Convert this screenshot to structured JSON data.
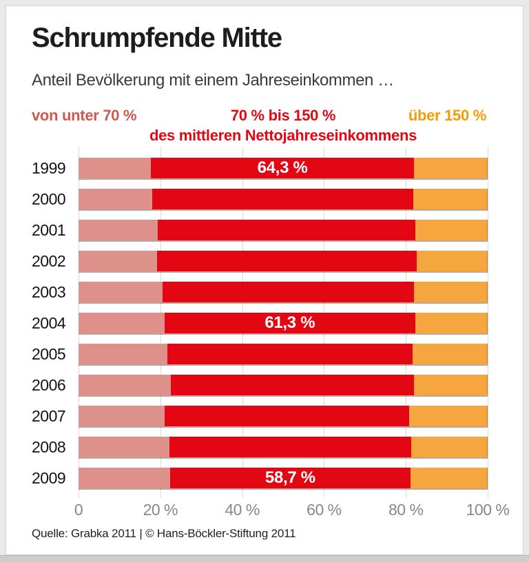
{
  "header": {
    "title": "Schrumpfende Mitte",
    "subtitle": "Anteil Bevölkerung mit einem Jahreseinkommen …"
  },
  "legend": {
    "items": [
      {
        "label": "von unter 70 %",
        "color": "#d2574e"
      },
      {
        "label": "70 % bis 150 %",
        "color": "#e30613"
      },
      {
        "label": "über 150 %",
        "color": "#f59c00"
      }
    ],
    "subline": "des mittleren Nettojahreseinkommens",
    "subline_color": "#e30613"
  },
  "chart_data": {
    "type": "bar",
    "orientation": "horizontal",
    "stacked": true,
    "title": "Schrumpfende Mitte",
    "subtitle": "Anteil Bevölkerung mit einem Jahreseinkommen …",
    "categories": [
      "1999",
      "2000",
      "2001",
      "2002",
      "2003",
      "2004",
      "2005",
      "2006",
      "2007",
      "2008",
      "2009"
    ],
    "series": [
      {
        "name": "von unter 70 %",
        "color": "#de918a",
        "values": [
          17.7,
          18.0,
          19.3,
          19.2,
          20.6,
          21.0,
          21.8,
          22.5,
          21.0,
          22.3,
          22.4
        ]
      },
      {
        "name": "70 % bis 150 %",
        "color": "#e30613",
        "values": [
          64.3,
          63.8,
          63.1,
          63.5,
          61.4,
          61.3,
          59.8,
          59.5,
          59.8,
          59.0,
          58.7
        ]
      },
      {
        "name": "über 150 %",
        "color": "#f6a63f",
        "values": [
          18.0,
          18.2,
          17.6,
          17.3,
          18.0,
          17.7,
          18.4,
          18.0,
          19.2,
          18.7,
          18.9
        ]
      }
    ],
    "bar_labels": [
      "64,3 %",
      "",
      "",
      "",
      "",
      "61,3 %",
      "",
      "",
      "",
      "",
      "58,7 %"
    ],
    "x_ticks": [
      "0",
      "20 %",
      "40 %",
      "60 %",
      "80 %",
      "100 %"
    ],
    "xlim": [
      0,
      100
    ],
    "grid": true,
    "legend_position": "top"
  },
  "footer": {
    "source": "Quelle: Grabka 2011 | © Hans-Böckler-Stiftung 2011"
  }
}
